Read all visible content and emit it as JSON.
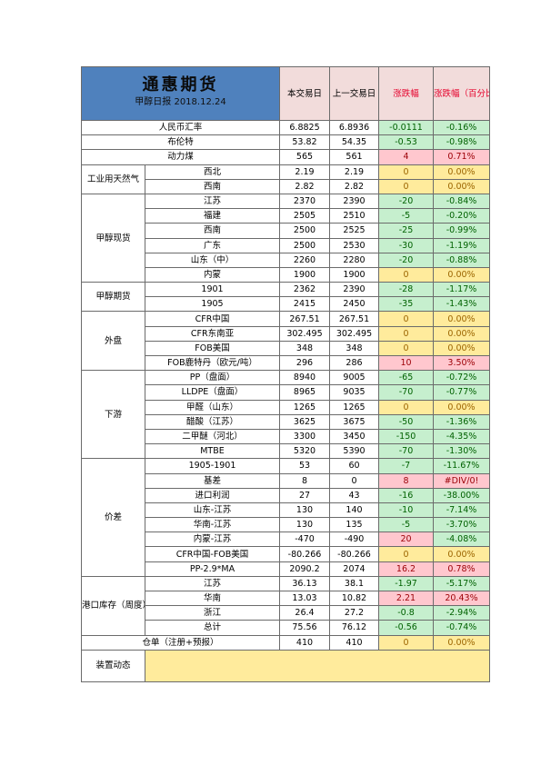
{
  "header": {
    "brand": "通惠期货",
    "subtitle": "甲醇日报 2018.12.24",
    "col_current": "本交易日",
    "col_previous": "上一交易日",
    "col_change": "涨跌幅",
    "col_change_pct": "涨跌幅（百分比）"
  },
  "rows": [
    {
      "group": "人民币汇率",
      "item": "",
      "cur": "6.8825",
      "prev": "6.8936",
      "chg": "-0.0111",
      "pct": "-0.16%",
      "dir": "neg"
    },
    {
      "group": "布伦特",
      "item": "",
      "cur": "53.82",
      "prev": "54.35",
      "chg": "-0.53",
      "pct": "-0.98%",
      "dir": "neg"
    },
    {
      "group": "动力煤",
      "item": "",
      "cur": "565",
      "prev": "561",
      "chg": "4",
      "pct": "0.71%",
      "dir": "pos"
    },
    {
      "group": "工业用天然气",
      "item": "西北",
      "cur": "2.19",
      "prev": "2.19",
      "chg": "0",
      "pct": "0.00%",
      "dir": "zero"
    },
    {
      "group": "",
      "item": "西南",
      "cur": "2.82",
      "prev": "2.82",
      "chg": "0",
      "pct": "0.00%",
      "dir": "zero"
    },
    {
      "group": "甲醇现货",
      "item": "江苏",
      "cur": "2370",
      "prev": "2390",
      "chg": "-20",
      "pct": "-0.84%",
      "dir": "neg"
    },
    {
      "group": "",
      "item": "福建",
      "cur": "2505",
      "prev": "2510",
      "chg": "-5",
      "pct": "-0.20%",
      "dir": "neg"
    },
    {
      "group": "",
      "item": "西南",
      "cur": "2500",
      "prev": "2525",
      "chg": "-25",
      "pct": "-0.99%",
      "dir": "neg"
    },
    {
      "group": "",
      "item": "广东",
      "cur": "2500",
      "prev": "2530",
      "chg": "-30",
      "pct": "-1.19%",
      "dir": "neg"
    },
    {
      "group": "",
      "item": "山东（中）",
      "cur": "2260",
      "prev": "2280",
      "chg": "-20",
      "pct": "-0.88%",
      "dir": "neg"
    },
    {
      "group": "",
      "item": "内蒙",
      "cur": "1900",
      "prev": "1900",
      "chg": "0",
      "pct": "0.00%",
      "dir": "zero"
    },
    {
      "group": "甲醇期货",
      "item": "1901",
      "cur": "2362",
      "prev": "2390",
      "chg": "-28",
      "pct": "-1.17%",
      "dir": "neg"
    },
    {
      "group": "",
      "item": "1905",
      "cur": "2415",
      "prev": "2450",
      "chg": "-35",
      "pct": "-1.43%",
      "dir": "neg"
    },
    {
      "group": "外盘",
      "item": "CFR中国",
      "cur": "267.51",
      "prev": "267.51",
      "chg": "0",
      "pct": "0.00%",
      "dir": "zero"
    },
    {
      "group": "",
      "item": "CFR东南亚",
      "cur": "302.495",
      "prev": "302.495",
      "chg": "0",
      "pct": "0.00%",
      "dir": "zero"
    },
    {
      "group": "",
      "item": "FOB美国",
      "cur": "348",
      "prev": "348",
      "chg": "0",
      "pct": "0.00%",
      "dir": "zero"
    },
    {
      "group": "",
      "item": "FOB鹿特丹（欧元/吨）",
      "cur": "296",
      "prev": "286",
      "chg": "10",
      "pct": "3.50%",
      "dir": "pos"
    },
    {
      "group": "下游",
      "item": "PP（盘面）",
      "cur": "8940",
      "prev": "9005",
      "chg": "-65",
      "pct": "-0.72%",
      "dir": "neg"
    },
    {
      "group": "",
      "item": "LLDPE（盘面）",
      "cur": "8965",
      "prev": "9035",
      "chg": "-70",
      "pct": "-0.77%",
      "dir": "neg"
    },
    {
      "group": "",
      "item": "甲醛（山东）",
      "cur": "1265",
      "prev": "1265",
      "chg": "0",
      "pct": "0.00%",
      "dir": "zero"
    },
    {
      "group": "",
      "item": "醋酸（江苏）",
      "cur": "3625",
      "prev": "3675",
      "chg": "-50",
      "pct": "-1.36%",
      "dir": "neg"
    },
    {
      "group": "",
      "item": "二甲醚（河北）",
      "cur": "3300",
      "prev": "3450",
      "chg": "-150",
      "pct": "-4.35%",
      "dir": "neg"
    },
    {
      "group": "",
      "item": "MTBE",
      "cur": "5320",
      "prev": "5390",
      "chg": "-70",
      "pct": "-1.30%",
      "dir": "neg"
    },
    {
      "group": "价差",
      "item": "1905-1901",
      "cur": "53",
      "prev": "60",
      "chg": "-7",
      "pct": "-11.67%",
      "dir": "neg"
    },
    {
      "group": "",
      "item": "基差",
      "cur": "8",
      "prev": "0",
      "chg": "8",
      "pct": "#DIV/0!",
      "dir": "pos"
    },
    {
      "group": "",
      "item": "进口利润",
      "cur": "27",
      "prev": "43",
      "chg": "-16",
      "pct": "-38.00%",
      "dir": "neg"
    },
    {
      "group": "",
      "item": "山东-江苏",
      "cur": "130",
      "prev": "140",
      "chg": "-10",
      "pct": "-7.14%",
      "dir": "neg"
    },
    {
      "group": "",
      "item": "华南-江苏",
      "cur": "130",
      "prev": "135",
      "chg": "-5",
      "pct": "-3.70%",
      "dir": "neg"
    },
    {
      "group": "",
      "item": "内蒙-江苏",
      "cur": "-470",
      "prev": "-490",
      "chg": "20",
      "pct": "-4.08%",
      "dir": "pos",
      "pctdir": "neg"
    },
    {
      "group": "",
      "item": "CFR中国-FOB美国",
      "cur": "-80.266",
      "prev": "-80.266",
      "chg": "0",
      "pct": "0.00%",
      "dir": "zero"
    },
    {
      "group": "",
      "item": "PP-2.9*MA",
      "cur": "2090.2",
      "prev": "2074",
      "chg": "16.2",
      "pct": "0.78%",
      "dir": "pos"
    },
    {
      "group": "港口库存（周度）",
      "item": "江苏",
      "cur": "36.13",
      "prev": "38.1",
      "chg": "-1.97",
      "pct": "-5.17%",
      "dir": "neg"
    },
    {
      "group": "",
      "item": "华南",
      "cur": "13.03",
      "prev": "10.82",
      "chg": "2.21",
      "pct": "20.43%",
      "dir": "pos"
    },
    {
      "group": "",
      "item": "浙江",
      "cur": "26.4",
      "prev": "27.2",
      "chg": "-0.8",
      "pct": "-2.94%",
      "dir": "neg"
    },
    {
      "group": "",
      "item": "总计",
      "cur": "75.56",
      "prev": "76.12",
      "chg": "-0.56",
      "pct": "-0.74%",
      "dir": "neg"
    },
    {
      "group": "仓单（注册+预报）",
      "item": "",
      "cur": "410",
      "prev": "410",
      "chg": "0",
      "pct": "0.00%",
      "dir": "zero"
    }
  ],
  "footer": {
    "label": "装置动态",
    "content": ""
  },
  "colors": {
    "title_bg": "#4f81bd",
    "header_bg": "#f2dcdb",
    "neg_bg": "#c6efce",
    "pos_bg": "#ffc7ce",
    "zero_bg": "#ffeb9c"
  }
}
